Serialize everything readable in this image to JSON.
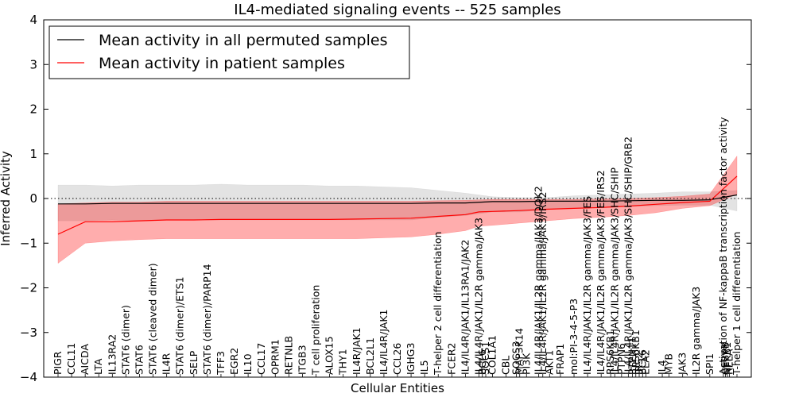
{
  "chart_data": {
    "type": "line",
    "title": "IL4-mediated signaling events -- 525 samples",
    "xlabel": "Cellular Entities",
    "ylabel": "Inferred Activity",
    "ylim": [
      -4,
      4
    ],
    "yticks": [
      -4,
      -3,
      -2,
      -1,
      0,
      1,
      2,
      3,
      4
    ],
    "ytick_labels": [
      "−4",
      "−3",
      "−2",
      "−1",
      "0",
      "1",
      "2",
      "3",
      "4"
    ],
    "zero_line": "dotted",
    "legend_position": "top-left",
    "categories": [
      {
        "label": "PIGR",
        "pos": 0
      },
      {
        "label": "CCL11",
        "pos": 1
      },
      {
        "label": "AICDA",
        "pos": 2
      },
      {
        "label": "LTA",
        "pos": 3
      },
      {
        "label": "IL13RA2",
        "pos": 4
      },
      {
        "label": "STAT6 (dimer)",
        "pos": 5
      },
      {
        "label": "STAT6",
        "pos": 6
      },
      {
        "label": "STAT6 (cleaved dimer)",
        "pos": 7
      },
      {
        "label": "IL4R",
        "pos": 8
      },
      {
        "label": "STAT6 (dimer)/ETS1",
        "pos": 9
      },
      {
        "label": "SELP",
        "pos": 10
      },
      {
        "label": "STAT6 (dimer)/PARP14",
        "pos": 11
      },
      {
        "label": "TFF3",
        "pos": 12
      },
      {
        "label": "EGR2",
        "pos": 13
      },
      {
        "label": "IL10",
        "pos": 14
      },
      {
        "label": "CCL17",
        "pos": 15
      },
      {
        "label": "OPRM1",
        "pos": 16
      },
      {
        "label": "RETNLB",
        "pos": 17
      },
      {
        "label": "ITGB3",
        "pos": 18
      },
      {
        "label": "T cell proliferation",
        "pos": 19
      },
      {
        "label": "ALOX15",
        "pos": 20
      },
      {
        "label": "THY1",
        "pos": 21
      },
      {
        "label": "IL4R/JAK1",
        "pos": 22
      },
      {
        "label": "BCL2L1",
        "pos": 23
      },
      {
        "label": "IL4/IL4R/JAK1",
        "pos": 24
      },
      {
        "label": "CCL26",
        "pos": 25
      },
      {
        "label": "IGHG3",
        "pos": 26
      },
      {
        "label": "IL5",
        "pos": 27
      },
      {
        "label": "T-helper 2 cell differentiation",
        "pos": 28
      },
      {
        "label": "FCER2",
        "pos": 29
      },
      {
        "label": "IL4/IL4R/JAK1/IL13RA1/JAK2",
        "pos": 30
      },
      {
        "label": "IL4/IL4R/JAK1/IL2R gamma/JAK3",
        "pos": 31
      },
      {
        "label": "BCL6",
        "pos": 31.25
      },
      {
        "label": "SOCS1",
        "pos": 31.5
      },
      {
        "label": "COL1A1",
        "pos": 32
      },
      {
        "label": "CBL",
        "pos": 33
      },
      {
        "label": "SOCS3",
        "pos": 33.75
      },
      {
        "label": "MAP3K14",
        "pos": 34
      },
      {
        "label": "PI3K",
        "pos": 34.5
      },
      {
        "label": "IL4/IL4R/JAK1/IL2R gamma/JAK3/DOK2",
        "pos": 35.4
      },
      {
        "label": "IL4/IL4R/JAK1/IL2R gamma/JAK3/IRS2",
        "pos": 35.7
      },
      {
        "label": "AKT1",
        "pos": 36.2
      },
      {
        "label": "FRAP1",
        "pos": 37
      },
      {
        "label": "mol:PI-3-4-5-P3",
        "pos": 38
      },
      {
        "label": "IL4/IL4R/JAK1/IL2R gamma/JAK3/FES",
        "pos": 39
      },
      {
        "label": "IL4/IL4R/JAK1/IL2R gamma/JAK3/FES/IRS2",
        "pos": 40
      },
      {
        "label": "RPS6KB1",
        "pos": 40.7
      },
      {
        "label": "IL4/IL4R/JAK1/IL2R gamma/JAK3/SHC/SHIP",
        "pos": 41
      },
      {
        "label": "PTPN6",
        "pos": 41.5
      },
      {
        "label": "IL4/IL4R/JAK1/IL2R gamma/JAK3/SHC/SHIP/GRB2",
        "pos": 42
      },
      {
        "label": "PTPN11",
        "pos": 42.3
      },
      {
        "label": "RPS6KB1",
        "pos": 42.55
      },
      {
        "label": "IRS2",
        "pos": 42.8
      },
      {
        "label": "BCL6",
        "pos": 43.05
      },
      {
        "label": "ELA2",
        "pos": 43.3
      },
      {
        "label": "IL4",
        "pos": 44.5
      },
      {
        "label": "MYB",
        "pos": 45
      },
      {
        "label": "JAK3",
        "pos": 46
      },
      {
        "label": "IL2R gamma/JAK3",
        "pos": 47
      },
      {
        "label": "SPI1",
        "pos": 48
      },
      {
        "label": "Activation of NF-kappaB transcription factor activity",
        "pos": 49
      },
      {
        "label": "CEBPB",
        "pos": 49.15
      },
      {
        "label": "NFKB1",
        "pos": 49.3
      },
      {
        "label": "RELA",
        "pos": 49.45
      },
      {
        "label": "T-helper 1 cell differentiation",
        "pos": 50
      }
    ],
    "series": [
      {
        "name": "Mean activity in all permuted samples",
        "color": "#000000",
        "band_color": "#b0b0b0",
        "x": [
          0,
          2,
          4,
          6,
          8,
          10,
          12,
          14,
          16,
          18,
          20,
          22,
          24,
          26,
          28,
          30,
          32,
          34,
          36,
          38,
          40,
          42,
          44,
          46,
          48,
          50
        ],
        "mean": [
          -0.12,
          -0.12,
          -0.11,
          -0.11,
          -0.11,
          -0.11,
          -0.11,
          -0.11,
          -0.11,
          -0.11,
          -0.11,
          -0.11,
          -0.11,
          -0.11,
          -0.1,
          -0.1,
          -0.07,
          -0.07,
          -0.06,
          -0.06,
          -0.06,
          -0.05,
          -0.04,
          -0.04,
          -0.03,
          0.08
        ],
        "upper": [
          0.3,
          0.3,
          0.28,
          0.3,
          0.3,
          0.3,
          0.32,
          0.3,
          0.3,
          0.3,
          0.28,
          0.28,
          0.26,
          0.24,
          0.18,
          0.12,
          0.04,
          0.02,
          0.02,
          0.06,
          0.08,
          0.1,
          0.12,
          0.15,
          0.15,
          0.18
        ],
        "lower": [
          -0.5,
          -0.5,
          -0.48,
          -0.5,
          -0.48,
          -0.48,
          -0.48,
          -0.48,
          -0.48,
          -0.48,
          -0.48,
          -0.48,
          -0.48,
          -0.48,
          -0.42,
          -0.38,
          -0.3,
          -0.3,
          -0.25,
          -0.2,
          -0.2,
          -0.18,
          -0.16,
          -0.15,
          -0.15,
          -0.28
        ]
      },
      {
        "name": "Mean activity in patient samples",
        "color": "#ff0000",
        "band_color": "#ff0000",
        "x": [
          0,
          2,
          4,
          6,
          8,
          10,
          12,
          14,
          16,
          18,
          20,
          22,
          24,
          26,
          28,
          30,
          31,
          32,
          34,
          36,
          38,
          40,
          42,
          44,
          46,
          48,
          50
        ],
        "mean": [
          -0.8,
          -0.52,
          -0.52,
          -0.5,
          -0.48,
          -0.48,
          -0.47,
          -0.47,
          -0.47,
          -0.47,
          -0.47,
          -0.46,
          -0.45,
          -0.44,
          -0.4,
          -0.36,
          -0.3,
          -0.29,
          -0.27,
          -0.24,
          -0.22,
          -0.2,
          -0.17,
          -0.13,
          -0.09,
          -0.06,
          0.5
        ],
        "upper": [
          -0.12,
          -0.1,
          -0.08,
          -0.08,
          -0.06,
          -0.06,
          -0.06,
          -0.06,
          -0.06,
          -0.06,
          -0.06,
          -0.06,
          -0.06,
          -0.06,
          -0.05,
          -0.04,
          -0.03,
          -0.02,
          -0.02,
          -0.02,
          -0.02,
          -0.01,
          0.0,
          0.02,
          0.05,
          0.1,
          0.95
        ],
        "lower": [
          -1.45,
          -1.0,
          -0.95,
          -0.92,
          -0.9,
          -0.9,
          -0.9,
          -0.9,
          -0.9,
          -0.9,
          -0.9,
          -0.9,
          -0.88,
          -0.86,
          -0.8,
          -0.72,
          -0.62,
          -0.6,
          -0.55,
          -0.5,
          -0.45,
          -0.42,
          -0.38,
          -0.32,
          -0.22,
          -0.16,
          0.1
        ]
      }
    ]
  }
}
